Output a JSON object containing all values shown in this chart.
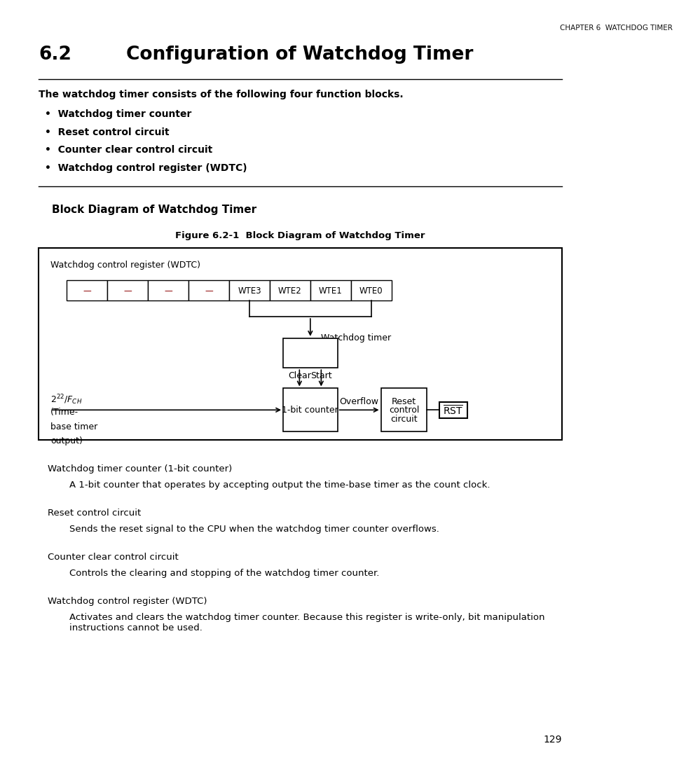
{
  "page_width": 10.8,
  "page_height": 13.97,
  "bg_color": "#ffffff",
  "header_text": "CHAPTER 6  WATCHDOG TIMER",
  "section_number": "6.2",
  "section_title": "Configuration of Watchdog Timer",
  "intro_bold": "The watchdog timer consists of the following four function blocks.",
  "bullets": [
    "Watchdog timer counter",
    "Reset control circuit",
    "Counter clear control circuit",
    "Watchdog control register (WDTC)"
  ],
  "subsection_title": "Block Diagram of Watchdog Timer",
  "figure_caption": "Figure 6.2-1  Block Diagram of Watchdog Timer",
  "diagram": {
    "register_label": "Watchdog control register (WDTC)",
    "register_cells": [
      "—",
      "—",
      "—",
      "—",
      "WTE3",
      "WTE2",
      "WTE1",
      "WTE0"
    ],
    "watchdog_timer_label": "Watchdog timer",
    "clear_label": "Clear",
    "start_label": "Start",
    "counter_label": "1-bit counter",
    "overflow_label": "Overflow",
    "reset_label1": "Reset",
    "reset_label2": "control",
    "reset_label3": "circuit"
  },
  "descriptions": [
    {
      "title": "Watchdog timer counter (1-bit counter)",
      "body": "A 1-bit counter that operates by accepting output the time-base timer as the count clock."
    },
    {
      "title": "Reset control circuit",
      "body": "Sends the reset signal to the CPU when the watchdog timer counter overflows."
    },
    {
      "title": "Counter clear control circuit",
      "body": "Controls the clearing and stopping of the watchdog timer counter."
    },
    {
      "title": "Watchdog control register (WDTC)",
      "body": "Activates and clears the watchdog timer counter. Because this register is write-only, bit manipulation\ninstructions cannot be used."
    }
  ],
  "page_number": "129"
}
